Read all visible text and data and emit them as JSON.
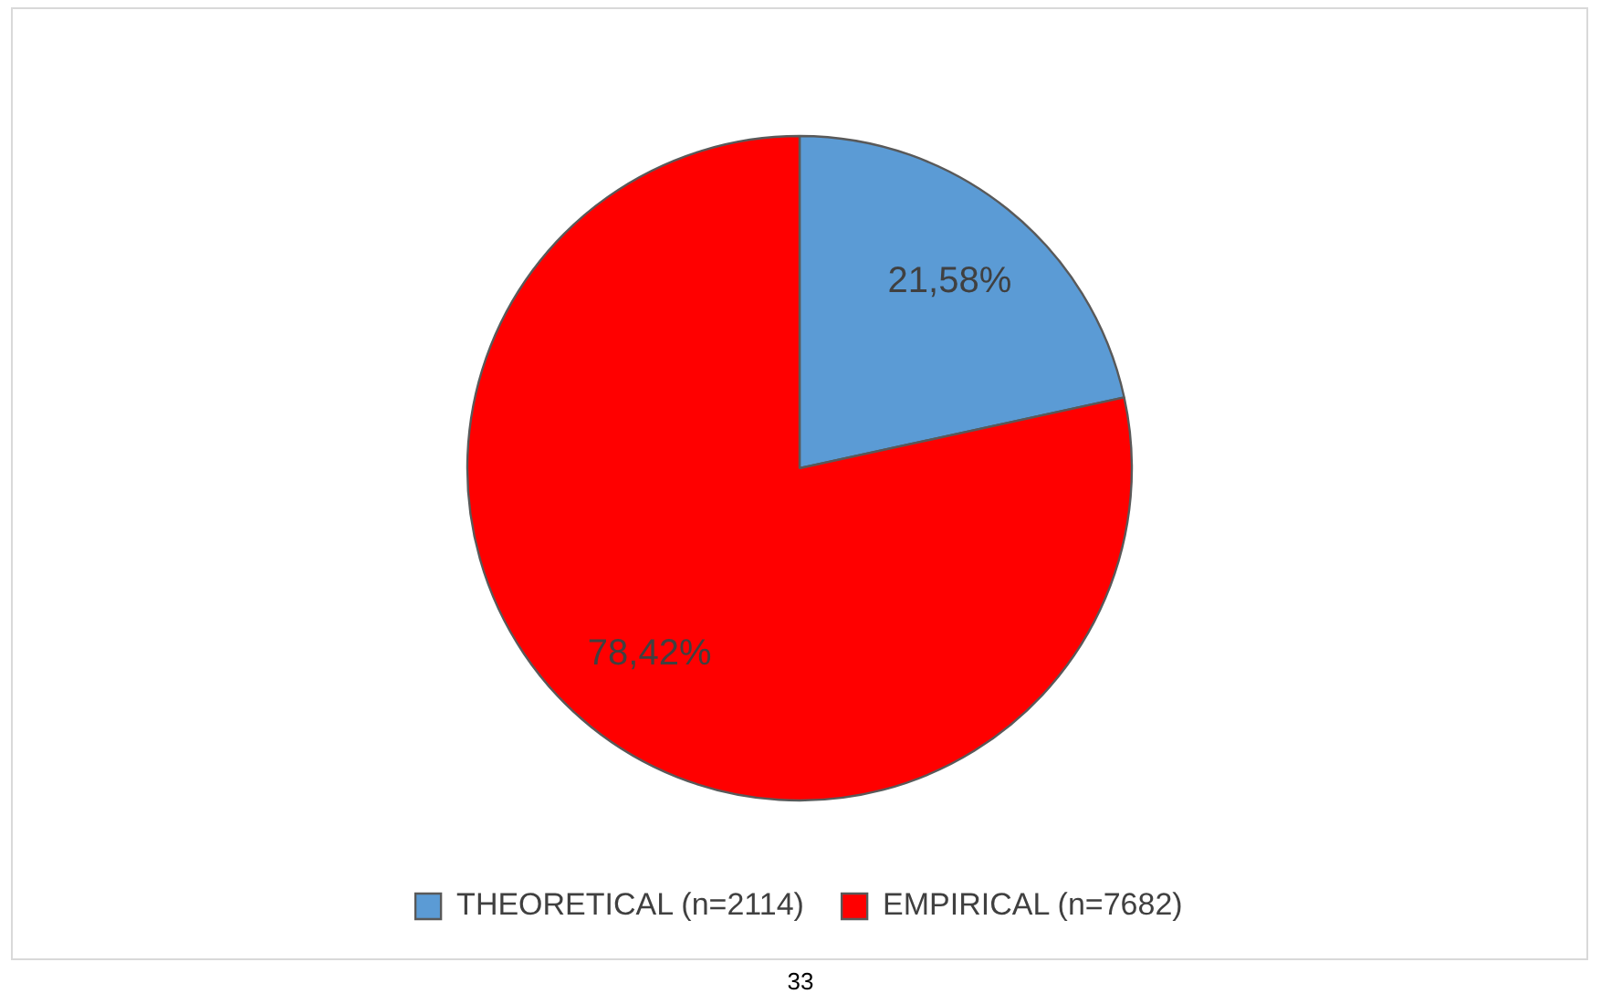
{
  "chart_data": {
    "type": "pie",
    "categories": [
      "THEORETICAL (n=2114)",
      "EMPIRICAL (n=7682)"
    ],
    "values": [
      21.58,
      78.42
    ],
    "colors": [
      "#5b9bd5",
      "#ff0000"
    ],
    "value_labels": [
      "21,58%",
      "78,42%"
    ],
    "legend": "bottom",
    "annotations": [
      "33"
    ]
  }
}
